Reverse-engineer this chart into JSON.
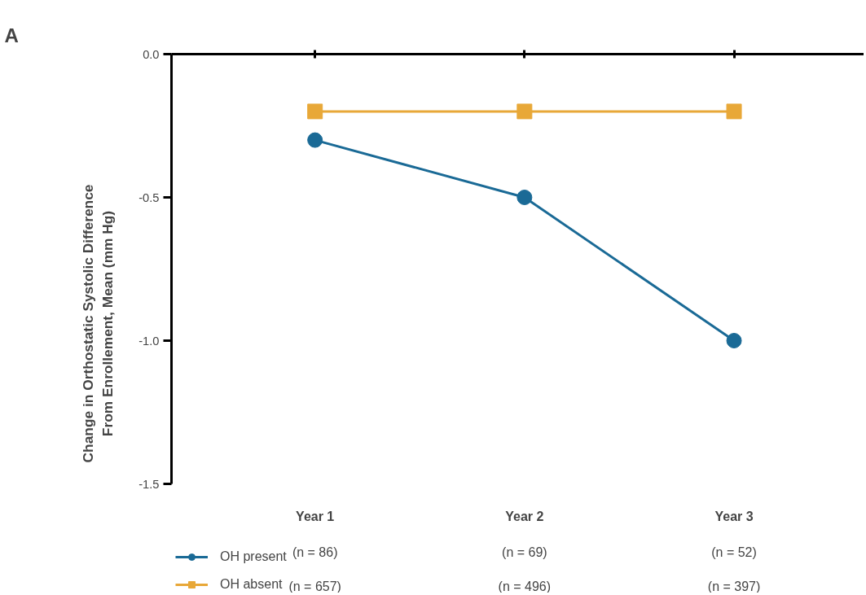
{
  "chart_data": {
    "type": "line",
    "title": "A",
    "xlabel": null,
    "ylabel": "Change in Orthostatic Systolic Difference\nFrom Enrollement, Mean (mm Hg)",
    "categories": [
      "Year 1",
      "Year 2",
      "Year 3"
    ],
    "series": [
      {
        "name": "OH present",
        "color": "#1a6a96",
        "marker": "circle",
        "values": [
          -0.3,
          -0.5,
          -1.0
        ]
      },
      {
        "name": "OH absent",
        "color": "#e8a838",
        "marker": "square",
        "values": [
          -0.2,
          -0.2,
          -0.2
        ]
      }
    ],
    "ylim": [
      -1.5,
      0
    ],
    "yticks": [
      {
        "value": 0,
        "label": "0.0"
      },
      {
        "value": -0.5,
        "label": "-0.5"
      },
      {
        "value": -1.0,
        "label": "-1.0"
      },
      {
        "value": -1.5,
        "label": "-1.5"
      }
    ],
    "annotations": [
      "(n = 86)",
      "(n = 69)",
      "(n = 52)",
      "(n = 657)",
      "(n = 496)",
      "(n = 397)"
    ],
    "grid": false,
    "legend": "bottom left"
  }
}
